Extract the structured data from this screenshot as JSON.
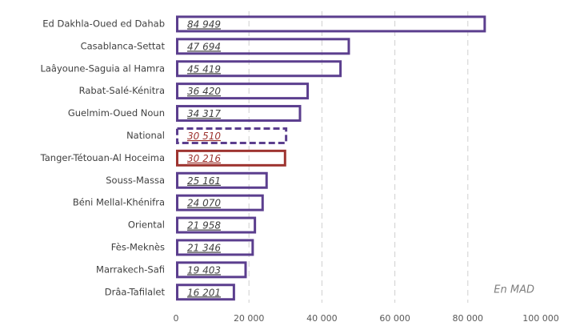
{
  "chart_data": {
    "type": "bar",
    "orientation": "horizontal",
    "categories": [
      "Ed Dakhla-Oued ed Dahab",
      "Casablanca-Settat",
      "Laâyoune-Saguia al Hamra",
      "Rabat-Salé-Kénitra",
      "Guelmim-Oued Noun",
      "National",
      "Tanger-Tétouan-Al Hoceima",
      "Souss-Massa",
      "Béni Mellal-Khénifra",
      "Oriental",
      "Fès-Meknès",
      "Marrakech-Safi",
      "Drâa-Tafilalet"
    ],
    "values": [
      84949,
      47694,
      45419,
      36420,
      34317,
      30510,
      30216,
      25161,
      24070,
      21958,
      21346,
      19403,
      16201
    ],
    "value_labels": [
      "84 949",
      "47 694",
      "45 419",
      "36 420",
      "34 317",
      "30 510",
      "30 216",
      "25 161",
      "24 070",
      "21 958",
      "21 346",
      "19 403",
      "16 201"
    ],
    "colors": [
      "#5b3e8e",
      "#5b3e8e",
      "#5b3e8e",
      "#5b3e8e",
      "#5b3e8e",
      "#5b3e8e",
      "#9e3430",
      "#5b3e8e",
      "#5b3e8e",
      "#5b3e8e",
      "#5b3e8e",
      "#5b3e8e",
      "#5b3e8e"
    ],
    "label_colors": [
      "#404040",
      "#404040",
      "#404040",
      "#404040",
      "#404040",
      "#9e3430",
      "#9e3430",
      "#404040",
      "#404040",
      "#404040",
      "#404040",
      "#404040",
      "#404040"
    ],
    "bar_styles": [
      "solid",
      "solid",
      "solid",
      "solid",
      "solid",
      "dashed",
      "solid",
      "solid",
      "solid",
      "solid",
      "solid",
      "solid",
      "solid"
    ],
    "xlim": [
      0,
      100000
    ],
    "xticks": [
      0,
      {
        "value": 20000,
        "label": "20 000"
      },
      {
        "value": 40000,
        "label": "40 000"
      },
      {
        "value": 60000,
        "label": "60 000"
      },
      {
        "value": 80000,
        "label": "80 000"
      },
      {
        "value": 100000,
        "label": "100 000"
      }
    ],
    "grid": true,
    "annotation": "En MAD"
  }
}
